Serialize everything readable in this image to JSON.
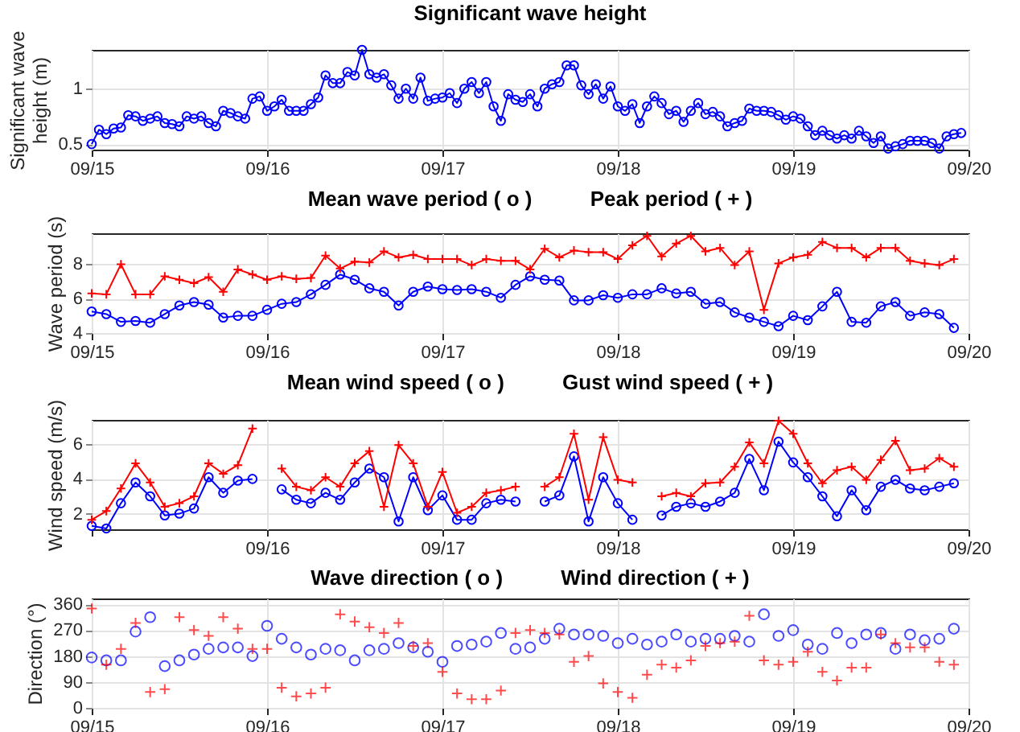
{
  "chart_data": [
    {
      "type": "line",
      "title": "Significant wave height",
      "ylabel": "Significant wave height (m)",
      "grid": true,
      "xlim": [
        "--09-15",
        "--09-20"
      ],
      "xticks": [
        {
          "value": "--09-15",
          "label": "09/15"
        },
        {
          "value": "--09-16",
          "label": "09/16"
        },
        {
          "value": "--09-17",
          "label": "09/17"
        },
        {
          "value": "--09-18",
          "label": "09/18"
        },
        {
          "value": "--09-19",
          "label": "09/19"
        },
        {
          "value": "--09-20",
          "label": "09/20"
        }
      ],
      "ylim": [
        0.45,
        1.35
      ],
      "yticks": [
        0.5,
        1
      ],
      "x": [
        "--09-15T00:00",
        "--09-15T01:00",
        "--09-15T02:00",
        "--09-15T03:00",
        "--09-15T04:00",
        "--09-15T05:00",
        "--09-15T06:00",
        "--09-15T07:00",
        "--09-15T08:00",
        "--09-15T09:00",
        "--09-15T10:00",
        "--09-15T11:00",
        "--09-15T12:00",
        "--09-15T13:00",
        "--09-15T14:00",
        "--09-15T15:00",
        "--09-15T16:00",
        "--09-15T17:00",
        "--09-15T18:00",
        "--09-15T19:00",
        "--09-15T20:00",
        "--09-15T21:00",
        "--09-15T22:00",
        "--09-15T23:00",
        "--09-16T00:00",
        "--09-16T01:00",
        "--09-16T02:00",
        "--09-16T03:00",
        "--09-16T04:00",
        "--09-16T05:00",
        "--09-16T06:00",
        "--09-16T07:00",
        "--09-16T08:00",
        "--09-16T09:00",
        "--09-16T10:00",
        "--09-16T11:00",
        "--09-16T12:00",
        "--09-16T13:00",
        "--09-16T14:00",
        "--09-16T15:00",
        "--09-16T16:00",
        "--09-16T17:00",
        "--09-16T18:00",
        "--09-16T19:00",
        "--09-16T20:00",
        "--09-16T21:00",
        "--09-16T22:00",
        "--09-16T23:00",
        "--09-17T00:00",
        "--09-17T01:00",
        "--09-17T02:00",
        "--09-17T03:00",
        "--09-17T04:00",
        "--09-17T05:00",
        "--09-17T06:00",
        "--09-17T07:00",
        "--09-17T08:00",
        "--09-17T09:00",
        "--09-17T10:00",
        "--09-17T11:00",
        "--09-17T12:00",
        "--09-17T13:00",
        "--09-17T14:00",
        "--09-17T15:00",
        "--09-17T16:00",
        "--09-17T17:00",
        "--09-17T18:00",
        "--09-17T19:00",
        "--09-17T20:00",
        "--09-17T21:00",
        "--09-17T22:00",
        "--09-17T23:00",
        "--09-18T00:00",
        "--09-18T01:00",
        "--09-18T02:00",
        "--09-18T03:00",
        "--09-18T04:00",
        "--09-18T05:00",
        "--09-18T06:00",
        "--09-18T07:00",
        "--09-18T08:00",
        "--09-18T09:00",
        "--09-18T10:00",
        "--09-18T11:00",
        "--09-18T12:00",
        "--09-18T13:00",
        "--09-18T14:00",
        "--09-18T15:00",
        "--09-18T16:00",
        "--09-18T17:00",
        "--09-18T18:00",
        "--09-18T19:00",
        "--09-18T20:00",
        "--09-18T21:00",
        "--09-18T22:00",
        "--09-18T23:00",
        "--09-19T00:00",
        "--09-19T01:00",
        "--09-19T02:00",
        "--09-19T03:00",
        "--09-19T04:00",
        "--09-19T05:00",
        "--09-19T06:00",
        "--09-19T07:00",
        "--09-19T08:00",
        "--09-19T09:00",
        "--09-19T10:00",
        "--09-19T11:00",
        "--09-19T12:00",
        "--09-19T13:00",
        "--09-19T14:00",
        "--09-19T15:00",
        "--09-19T16:00",
        "--09-19T17:00",
        "--09-19T18:00",
        "--09-19T19:00",
        "--09-19T20:00",
        "--09-19T21:00",
        "--09-19T22:00",
        "--09-19T23:00"
      ],
      "series": [
        {
          "color": "#0000ff",
          "marker": "circle",
          "values": [
            0.5,
            0.63,
            0.59,
            0.64,
            0.65,
            0.76,
            0.75,
            0.71,
            0.73,
            0.75,
            0.69,
            0.68,
            0.66,
            0.75,
            0.73,
            0.75,
            0.69,
            0.66,
            0.8,
            0.78,
            0.75,
            0.73,
            0.91,
            0.93,
            0.8,
            0.84,
            0.9,
            0.8,
            0.8,
            0.8,
            0.86,
            0.92,
            1.12,
            1.05,
            1.05,
            1.15,
            1.12,
            1.35,
            1.13,
            1.1,
            1.13,
            1.03,
            0.91,
            1.0,
            0.91,
            1.1,
            0.89,
            0.91,
            0.92,
            0.96,
            0.87,
            1.0,
            1.06,
            0.96,
            1.06,
            0.84,
            0.71,
            0.95,
            0.9,
            0.88,
            0.95,
            0.84,
            1.0,
            1.04,
            1.06,
            1.21,
            1.21,
            1.03,
            0.95,
            1.04,
            0.91,
            1.02,
            0.84,
            0.8,
            0.86,
            0.69,
            0.84,
            0.93,
            0.87,
            0.77,
            0.8,
            0.7,
            0.8,
            0.87,
            0.77,
            0.79,
            0.75,
            0.66,
            0.69,
            0.71,
            0.82,
            0.8,
            0.8,
            0.79,
            0.76,
            0.72,
            0.75,
            0.73,
            0.66,
            0.58,
            0.62,
            0.58,
            0.55,
            0.58,
            0.55,
            0.62,
            0.57,
            0.51,
            0.57,
            0.46,
            0.48,
            0.5,
            0.53,
            0.53,
            0.53,
            0.51,
            0.46,
            0.57,
            0.59,
            0.6
          ]
        }
      ]
    },
    {
      "type": "line",
      "title": "Mean wave period ( o )          Peak period ( + )",
      "ylabel": "Wave period (s)",
      "grid": true,
      "xlim": [
        "--09-15",
        "--09-20"
      ],
      "xticks": [
        {
          "value": "--09-15",
          "label": "09/15"
        },
        {
          "value": "--09-16",
          "label": "09/16"
        },
        {
          "value": "--09-17",
          "label": "09/17"
        },
        {
          "value": "--09-18",
          "label": "09/18"
        },
        {
          "value": "--09-19",
          "label": "09/19"
        },
        {
          "value": "--09-20",
          "label": "09/20"
        }
      ],
      "ylim": [
        4,
        9.8
      ],
      "yticks": [
        4,
        6,
        8
      ],
      "x": [
        "--09-15T00:00",
        "--09-15T02:00",
        "--09-15T04:00",
        "--09-15T06:00",
        "--09-15T08:00",
        "--09-15T10:00",
        "--09-15T12:00",
        "--09-15T14:00",
        "--09-15T16:00",
        "--09-15T18:00",
        "--09-15T20:00",
        "--09-15T22:00",
        "--09-16T00:00",
        "--09-16T02:00",
        "--09-16T04:00",
        "--09-16T06:00",
        "--09-16T08:00",
        "--09-16T10:00",
        "--09-16T12:00",
        "--09-16T14:00",
        "--09-16T16:00",
        "--09-16T18:00",
        "--09-16T20:00",
        "--09-16T22:00",
        "--09-17T00:00",
        "--09-17T02:00",
        "--09-17T04:00",
        "--09-17T06:00",
        "--09-17T08:00",
        "--09-17T10:00",
        "--09-17T12:00",
        "--09-17T14:00",
        "--09-17T16:00",
        "--09-17T18:00",
        "--09-17T20:00",
        "--09-17T22:00",
        "--09-18T00:00",
        "--09-18T02:00",
        "--09-18T04:00",
        "--09-18T06:00",
        "--09-18T08:00",
        "--09-18T10:00",
        "--09-18T12:00",
        "--09-18T14:00",
        "--09-18T16:00",
        "--09-18T18:00",
        "--09-18T20:00",
        "--09-18T22:00",
        "--09-19T00:00",
        "--09-19T02:00",
        "--09-19T04:00",
        "--09-19T06:00",
        "--09-19T08:00",
        "--09-19T10:00",
        "--09-19T12:00",
        "--09-19T14:00",
        "--09-19T16:00",
        "--09-19T18:00",
        "--09-19T20:00",
        "--09-19T22:00"
      ],
      "series": [
        {
          "color": "#0000ff",
          "marker": "circle",
          "values": [
            5.25,
            5.1,
            4.65,
            4.7,
            4.6,
            5.1,
            5.6,
            5.8,
            5.65,
            4.9,
            5.0,
            5.0,
            5.35,
            5.7,
            5.8,
            6.25,
            6.8,
            7.4,
            7.1,
            6.6,
            6.4,
            5.6,
            6.4,
            6.7,
            6.55,
            6.5,
            6.55,
            6.4,
            6.05,
            6.8,
            7.3,
            7.1,
            7.05,
            5.9,
            5.9,
            6.2,
            6.05,
            6.25,
            6.25,
            6.6,
            6.3,
            6.4,
            5.7,
            5.8,
            5.2,
            4.9,
            4.65,
            4.4,
            5.0,
            4.75,
            5.55,
            6.4,
            4.65,
            4.6,
            5.55,
            5.8,
            5.0,
            5.2,
            5.1,
            4.3
          ]
        },
        {
          "color": "#ff0000",
          "marker": "cross",
          "values": [
            6.3,
            6.25,
            8.0,
            6.25,
            6.25,
            7.3,
            7.1,
            6.9,
            7.25,
            6.4,
            7.7,
            7.4,
            7.1,
            7.3,
            7.15,
            7.2,
            8.5,
            7.75,
            8.15,
            8.1,
            8.75,
            8.4,
            8.55,
            8.3,
            8.3,
            8.3,
            7.95,
            8.3,
            8.2,
            8.2,
            7.7,
            8.9,
            8.4,
            8.8,
            8.7,
            8.7,
            8.3,
            9.1,
            9.65,
            8.45,
            9.2,
            9.65,
            8.75,
            8.95,
            7.95,
            8.75,
            5.35,
            8.05,
            8.4,
            8.55,
            9.3,
            8.95,
            8.95,
            8.4,
            8.95,
            8.95,
            8.2,
            8.05,
            7.95,
            8.3
          ]
        }
      ]
    },
    {
      "type": "line",
      "title": "Mean wind speed ( o )          Gust wind speed ( + )",
      "ylabel": "Wind speed (m/s)",
      "grid": true,
      "xlim": [
        "--09-15",
        "--09-20"
      ],
      "xticks": [
        {
          "value": "--09-15",
          "label": null
        },
        {
          "value": "--09-16",
          "label": "09/16"
        },
        {
          "value": "--09-17",
          "label": "09/17"
        },
        {
          "value": "--09-18",
          "label": "09/18"
        },
        {
          "value": "--09-19",
          "label": "09/19"
        },
        {
          "value": "--09-20",
          "label": "09/20"
        }
      ],
      "ylim": [
        1.1,
        7.4
      ],
      "yticks": [
        2,
        4,
        6
      ],
      "x": [
        "--09-15T00:00",
        "--09-15T02:00",
        "--09-15T04:00",
        "--09-15T06:00",
        "--09-15T08:00",
        "--09-15T10:00",
        "--09-15T12:00",
        "--09-15T14:00",
        "--09-15T16:00",
        "--09-15T18:00",
        "--09-15T20:00",
        "--09-15T22:00",
        "--09-16T00:00",
        "--09-16T02:00",
        "--09-16T04:00",
        "--09-16T06:00",
        "--09-16T08:00",
        "--09-16T10:00",
        "--09-16T12:00",
        "--09-16T14:00",
        "--09-16T16:00",
        "--09-16T18:00",
        "--09-16T20:00",
        "--09-16T22:00",
        "--09-17T00:00",
        "--09-17T02:00",
        "--09-17T04:00",
        "--09-17T06:00",
        "--09-17T08:00",
        "--09-17T10:00",
        "--09-17T12:00",
        "--09-17T14:00",
        "--09-17T16:00",
        "--09-17T18:00",
        "--09-17T20:00",
        "--09-17T22:00",
        "--09-18T00:00",
        "--09-18T02:00",
        "--09-18T04:00",
        "--09-18T06:00",
        "--09-18T08:00",
        "--09-18T10:00",
        "--09-18T12:00",
        "--09-18T14:00",
        "--09-18T16:00",
        "--09-18T18:00",
        "--09-18T20:00",
        "--09-18T22:00",
        "--09-19T00:00",
        "--09-19T02:00",
        "--09-19T04:00",
        "--09-19T06:00",
        "--09-19T08:00",
        "--09-19T10:00",
        "--09-19T12:00",
        "--09-19T14:00",
        "--09-19T16:00",
        "--09-19T18:00",
        "--09-19T20:00",
        "--09-19T22:00"
      ],
      "series": [
        {
          "color": "#0000ff",
          "marker": "circle",
          "values": [
            1.3,
            1.15,
            2.6,
            3.8,
            3.0,
            1.9,
            2.0,
            2.3,
            4.1,
            3.2,
            3.9,
            4.0,
            null,
            3.4,
            2.8,
            2.6,
            3.2,
            2.8,
            3.8,
            4.6,
            4.1,
            1.55,
            4.1,
            2.2,
            3.05,
            1.65,
            1.65,
            2.6,
            2.8,
            2.7,
            null,
            2.7,
            3.05,
            5.3,
            1.55,
            4.1,
            2.6,
            1.65,
            null,
            1.9,
            2.4,
            2.6,
            2.4,
            2.7,
            3.2,
            5.15,
            3.35,
            6.15,
            4.95,
            4.1,
            3.0,
            1.85,
            3.35,
            2.2,
            3.55,
            3.95,
            3.45,
            3.35,
            3.55,
            3.75
          ]
        },
        {
          "color": "#ff0000",
          "marker": "cross",
          "values": [
            1.65,
            2.15,
            3.45,
            4.9,
            3.8,
            2.4,
            2.6,
            3.0,
            4.9,
            4.3,
            4.8,
            6.9,
            null,
            4.6,
            3.55,
            3.35,
            4.1,
            3.55,
            4.9,
            5.6,
            2.4,
            5.95,
            4.9,
            2.4,
            4.4,
            2.05,
            2.4,
            3.2,
            3.35,
            3.55,
            null,
            3.55,
            4.1,
            6.6,
            2.8,
            6.4,
            3.95,
            3.8,
            null,
            3.0,
            3.2,
            3.0,
            3.75,
            3.8,
            4.7,
            6.1,
            4.9,
            7.35,
            6.6,
            4.9,
            3.75,
            4.5,
            4.7,
            3.95,
            5.1,
            6.2,
            4.5,
            4.6,
            5.2,
            4.7
          ]
        }
      ]
    },
    {
      "type": "scatter",
      "title": "Wave direction ( o )          Wind direction ( + )",
      "ylabel": "Direction (°)",
      "grid": true,
      "xlim": [
        "--09-15",
        "--09-20"
      ],
      "xticks": [
        {
          "value": "--09-15",
          "label": "09/15"
        },
        {
          "value": "--09-16",
          "label": "09/16"
        },
        {
          "value": "--09-17",
          "label": "09/17"
        },
        {
          "value": "--09-18",
          "label": "09/18"
        },
        {
          "value": "--09-19",
          "label": "09/19"
        },
        {
          "value": "--09-20",
          "label": "09/20"
        }
      ],
      "ylim": [
        0,
        380
      ],
      "yticks": [
        0,
        90,
        180,
        270,
        360
      ],
      "x": [
        "--09-15T00:00",
        "--09-15T02:00",
        "--09-15T04:00",
        "--09-15T06:00",
        "--09-15T08:00",
        "--09-15T10:00",
        "--09-15T12:00",
        "--09-15T14:00",
        "--09-15T16:00",
        "--09-15T18:00",
        "--09-15T20:00",
        "--09-15T22:00",
        "--09-16T00:00",
        "--09-16T02:00",
        "--09-16T04:00",
        "--09-16T06:00",
        "--09-16T08:00",
        "--09-16T10:00",
        "--09-16T12:00",
        "--09-16T14:00",
        "--09-16T16:00",
        "--09-16T18:00",
        "--09-16T20:00",
        "--09-16T22:00",
        "--09-17T00:00",
        "--09-17T02:00",
        "--09-17T04:00",
        "--09-17T06:00",
        "--09-17T08:00",
        "--09-17T10:00",
        "--09-17T12:00",
        "--09-17T14:00",
        "--09-17T16:00",
        "--09-17T18:00",
        "--09-17T20:00",
        "--09-17T22:00",
        "--09-18T00:00",
        "--09-18T02:00",
        "--09-18T04:00",
        "--09-18T06:00",
        "--09-18T08:00",
        "--09-18T10:00",
        "--09-18T12:00",
        "--09-18T14:00",
        "--09-18T16:00",
        "--09-18T18:00",
        "--09-18T20:00",
        "--09-18T22:00",
        "--09-19T00:00",
        "--09-19T02:00",
        "--09-19T04:00",
        "--09-19T06:00",
        "--09-19T08:00",
        "--09-19T10:00",
        "--09-19T12:00",
        "--09-19T14:00",
        "--09-19T16:00",
        "--09-19T18:00",
        "--09-19T20:00",
        "--09-19T22:00"
      ],
      "series": [
        {
          "color": "#0000ff",
          "marker": "circle",
          "values": [
            175,
            165,
            165,
            265,
            315,
            145,
            165,
            185,
            205,
            210,
            210,
            180,
            285,
            240,
            210,
            185,
            205,
            200,
            165,
            200,
            205,
            225,
            210,
            195,
            160,
            215,
            220,
            230,
            260,
            205,
            210,
            240,
            275,
            255,
            255,
            250,
            225,
            240,
            220,
            230,
            255,
            230,
            240,
            240,
            250,
            230,
            325,
            250,
            270,
            220,
            205,
            260,
            225,
            255,
            260,
            205,
            255,
            235,
            240,
            275
          ]
        },
        {
          "color": "#ff0000",
          "marker": "cross",
          "values": [
            345,
            150,
            205,
            295,
            55,
            65,
            315,
            270,
            250,
            315,
            275,
            205,
            205,
            70,
            40,
            50,
            70,
            325,
            300,
            280,
            260,
            295,
            215,
            225,
            125,
            50,
            30,
            30,
            60,
            260,
            270,
            260,
            255,
            160,
            180,
            85,
            55,
            35,
            115,
            150,
            140,
            165,
            215,
            225,
            230,
            320,
            165,
            150,
            160,
            195,
            125,
            95,
            140,
            140,
            255,
            225,
            210,
            210,
            160,
            150
          ]
        }
      ]
    }
  ]
}
